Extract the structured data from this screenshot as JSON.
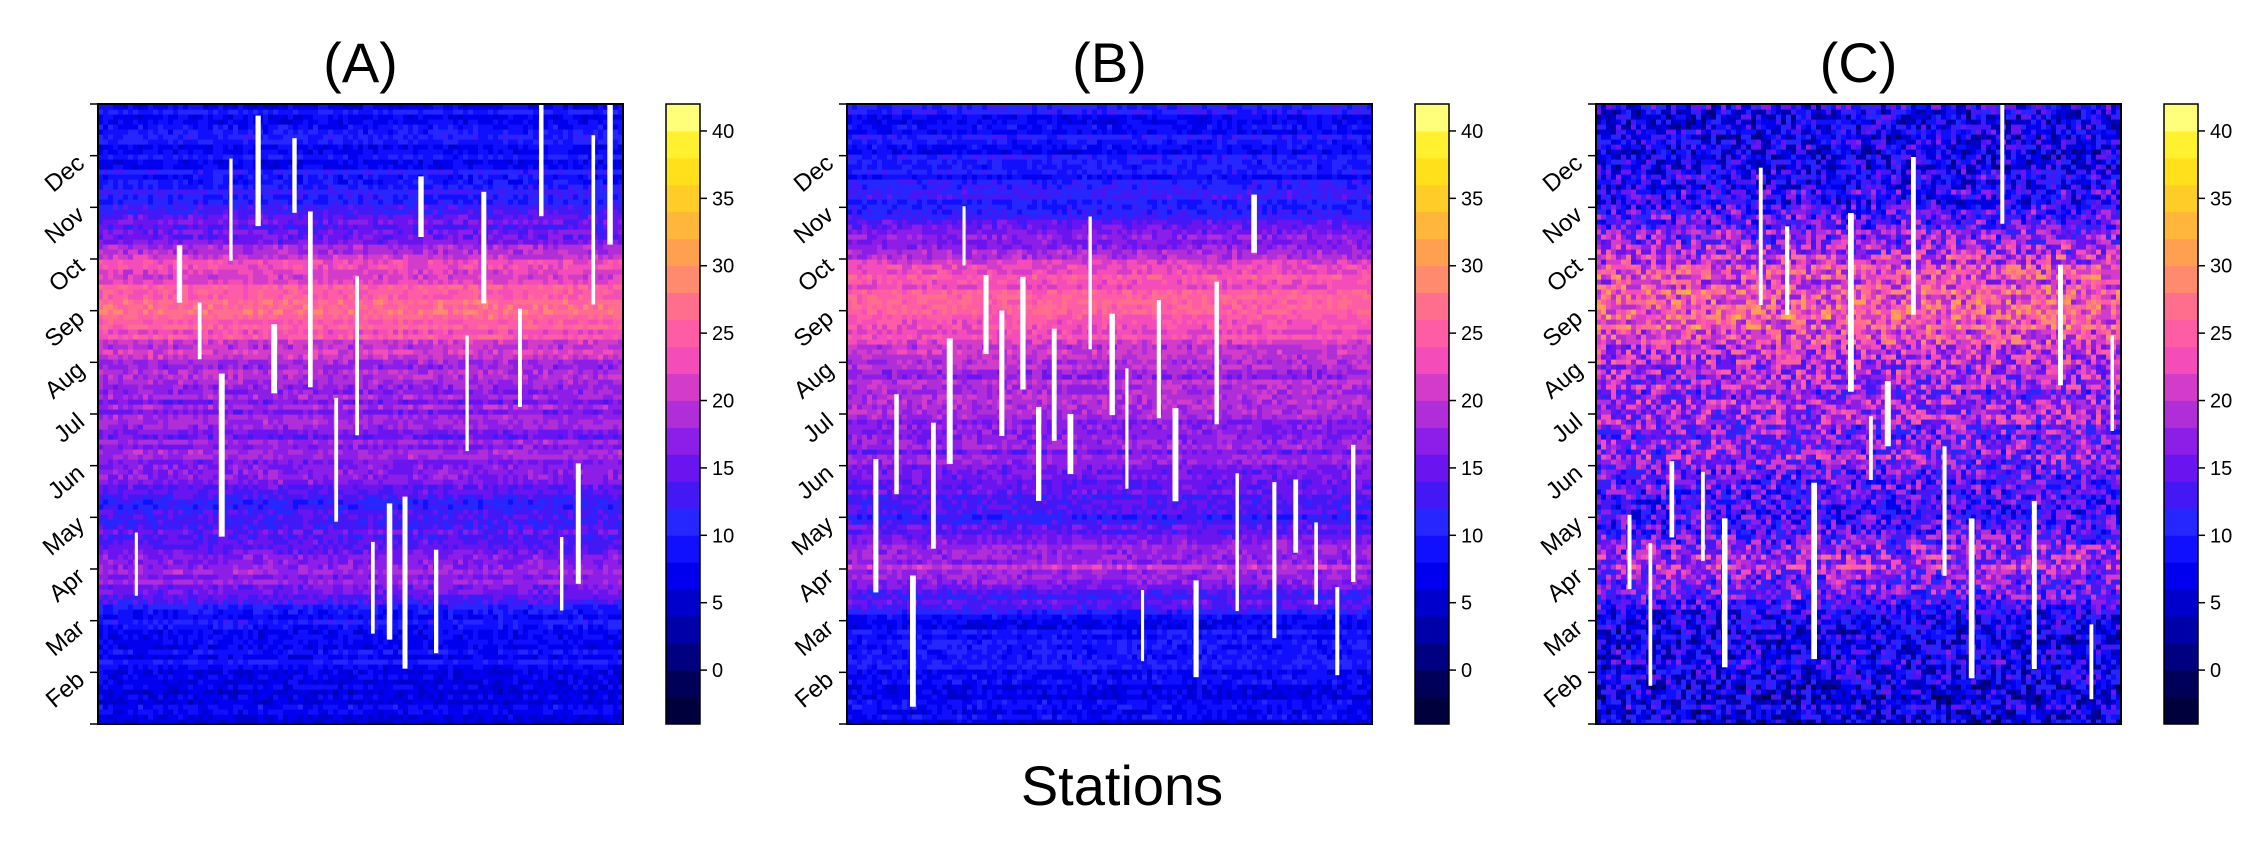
{
  "figure": {
    "xlabel": "Stations"
  },
  "colorbar": {
    "ticks": [
      0,
      5,
      10,
      15,
      20,
      25,
      30,
      35,
      40
    ],
    "range": [
      -4,
      42
    ],
    "levels": [
      {
        "from": -4,
        "to": -2,
        "color": "#00003c"
      },
      {
        "from": -2,
        "to": 0,
        "color": "#000058"
      },
      {
        "from": 0,
        "to": 2,
        "color": "#000080"
      },
      {
        "from": 2,
        "to": 4,
        "color": "#0000a8"
      },
      {
        "from": 4,
        "to": 6,
        "color": "#0000cc"
      },
      {
        "from": 6,
        "to": 8,
        "color": "#0000ee"
      },
      {
        "from": 8,
        "to": 10,
        "color": "#1010ff"
      },
      {
        "from": 10,
        "to": 12,
        "color": "#2626ff"
      },
      {
        "from": 12,
        "to": 14,
        "color": "#4418f5"
      },
      {
        "from": 14,
        "to": 16,
        "color": "#6a14f0"
      },
      {
        "from": 16,
        "to": 18,
        "color": "#8c1ee8"
      },
      {
        "from": 18,
        "to": 20,
        "color": "#b02ed8"
      },
      {
        "from": 20,
        "to": 22,
        "color": "#d23cc8"
      },
      {
        "from": 22,
        "to": 24,
        "color": "#f44cb8"
      },
      {
        "from": 24,
        "to": 26,
        "color": "#ff5ca6"
      },
      {
        "from": 26,
        "to": 28,
        "color": "#ff6e8c"
      },
      {
        "from": 28,
        "to": 30,
        "color": "#ff8a6e"
      },
      {
        "from": 30,
        "to": 32,
        "color": "#ffa050"
      },
      {
        "from": 32,
        "to": 34,
        "color": "#ffb63a"
      },
      {
        "from": 34,
        "to": 36,
        "color": "#ffcc28"
      },
      {
        "from": 36,
        "to": 38,
        "color": "#ffe01a"
      },
      {
        "from": 38,
        "to": 40,
        "color": "#fff030"
      },
      {
        "from": 40,
        "to": 42,
        "color": "#ffff7a"
      }
    ]
  },
  "chart_data": [
    {
      "type": "heatmap",
      "title": "(A)",
      "xlabel": "Stations",
      "y_ticks": [
        "Feb",
        "Mar",
        "Apr",
        "May",
        "Jun",
        "Jul",
        "Aug",
        "Sep",
        "Oct",
        "Nov",
        "Dec"
      ],
      "y_range": [
        "Jan",
        "Dec"
      ],
      "value_range": [
        -4,
        42
      ],
      "colorbar_ticks": [
        0,
        5,
        10,
        15,
        20,
        25,
        30,
        35,
        40
      ],
      "seasonal_profile": [
        {
          "month": "Jan",
          "value": 7
        },
        {
          "month": "Feb",
          "value": 8
        },
        {
          "month": "Mar",
          "value": 9
        },
        {
          "month": "Apr",
          "value": 19
        },
        {
          "month": "May",
          "value": 12
        },
        {
          "month": "Jun",
          "value": 16
        },
        {
          "month": "Jul",
          "value": 17
        },
        {
          "month": "Aug",
          "value": 19
        },
        {
          "month": "Sep",
          "value": 26
        },
        {
          "month": "Oct",
          "value": 21
        },
        {
          "month": "Nov",
          "value": 11
        },
        {
          "month": "Dec",
          "value": 9
        }
      ],
      "noise": 2,
      "missing_stations": [
        0.07,
        0.15,
        0.19,
        0.23,
        0.25,
        0.3,
        0.33,
        0.37,
        0.4,
        0.45,
        0.49,
        0.52,
        0.55,
        0.58,
        0.61,
        0.64,
        0.7,
        0.73,
        0.8,
        0.84,
        0.88,
        0.91,
        0.94,
        0.97
      ]
    },
    {
      "type": "heatmap",
      "title": "(B)",
      "xlabel": "Stations",
      "y_ticks": [
        "Feb",
        "Mar",
        "Apr",
        "May",
        "Jun",
        "Jul",
        "Aug",
        "Sep",
        "Oct",
        "Nov",
        "Dec"
      ],
      "y_range": [
        "Jan",
        "Dec"
      ],
      "value_range": [
        -4,
        42
      ],
      "colorbar_ticks": [
        0,
        5,
        10,
        15,
        20,
        25,
        30,
        35,
        40
      ],
      "seasonal_profile": [
        {
          "month": "Jan",
          "value": 7
        },
        {
          "month": "Feb",
          "value": 8
        },
        {
          "month": "Mar",
          "value": 9
        },
        {
          "month": "Apr",
          "value": 19
        },
        {
          "month": "May",
          "value": 12
        },
        {
          "month": "Jun",
          "value": 16
        },
        {
          "month": "Jul",
          "value": 17
        },
        {
          "month": "Aug",
          "value": 19
        },
        {
          "month": "Sep",
          "value": 26
        },
        {
          "month": "Oct",
          "value": 21
        },
        {
          "month": "Nov",
          "value": 11
        },
        {
          "month": "Dec",
          "value": 9
        }
      ],
      "noise": 2,
      "missing_stations": [
        0.05,
        0.09,
        0.12,
        0.16,
        0.19,
        0.22,
        0.26,
        0.29,
        0.33,
        0.36,
        0.39,
        0.42,
        0.46,
        0.5,
        0.53,
        0.56,
        0.59,
        0.62,
        0.66,
        0.7,
        0.74,
        0.77,
        0.81,
        0.85,
        0.89,
        0.93,
        0.96
      ]
    },
    {
      "type": "heatmap",
      "title": "(C)",
      "xlabel": "Stations",
      "y_ticks": [
        "Feb",
        "Mar",
        "Apr",
        "May",
        "Jun",
        "Jul",
        "Aug",
        "Sep",
        "Oct",
        "Nov",
        "Dec"
      ],
      "y_range": [
        "Jan",
        "Dec"
      ],
      "value_range": [
        -4,
        42
      ],
      "colorbar_ticks": [
        0,
        5,
        10,
        15,
        20,
        25,
        30,
        35,
        40
      ],
      "seasonal_profile": [
        {
          "month": "Jan",
          "value": 7
        },
        {
          "month": "Feb",
          "value": 8
        },
        {
          "month": "Mar",
          "value": 9
        },
        {
          "month": "Apr",
          "value": 19
        },
        {
          "month": "May",
          "value": 12
        },
        {
          "month": "Jun",
          "value": 16
        },
        {
          "month": "Jul",
          "value": 17
        },
        {
          "month": "Aug",
          "value": 19
        },
        {
          "month": "Sep",
          "value": 26
        },
        {
          "month": "Oct",
          "value": 21
        },
        {
          "month": "Nov",
          "value": 11
        },
        {
          "month": "Dec",
          "value": 9
        }
      ],
      "noise": 7,
      "missing_stations": [
        0.06,
        0.1,
        0.14,
        0.2,
        0.24,
        0.31,
        0.36,
        0.41,
        0.48,
        0.52,
        0.55,
        0.6,
        0.66,
        0.71,
        0.77,
        0.83,
        0.88,
        0.94,
        0.98
      ]
    }
  ]
}
